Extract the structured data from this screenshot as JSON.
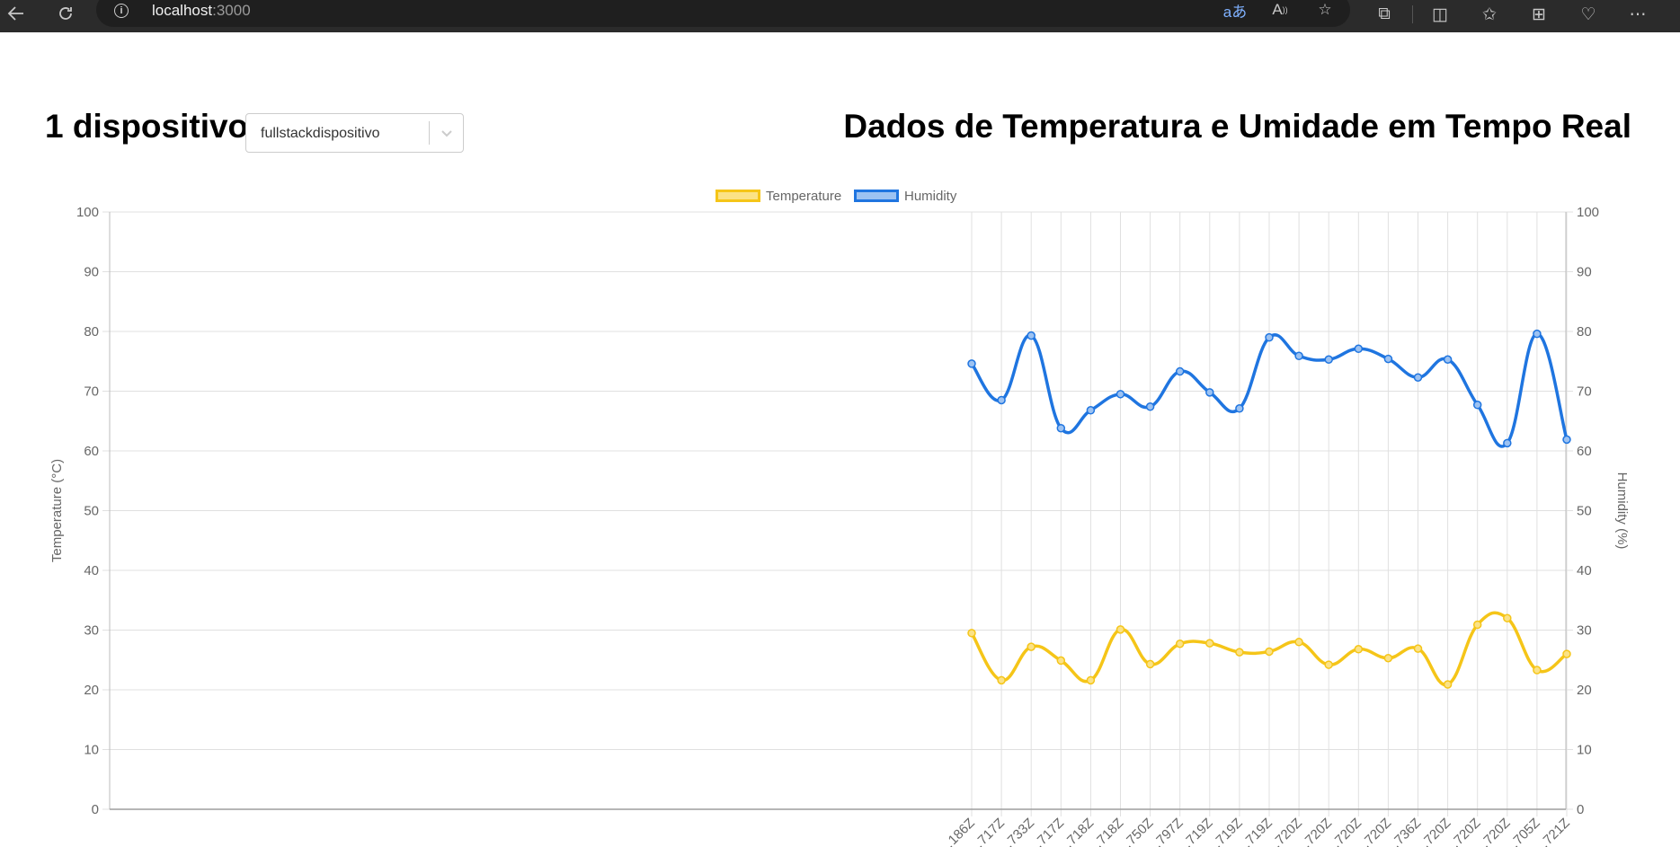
{
  "browser": {
    "url_host": "localhost",
    "url_port": ":3000",
    "back_icon": "back-arrow-icon",
    "refresh_icon": "refresh-icon",
    "toolbar_icons": [
      "translate-icon",
      "read-aloud-icon",
      "favorite-star-icon",
      "extensions-icon",
      "split-screen-icon",
      "favorites-icon",
      "collections-icon",
      "browser-essentials-icon",
      "more-icon"
    ]
  },
  "header": {
    "device_count": "1 dispositivo",
    "selected_device": "fullstackdispositivo",
    "title": "Dados de Temperatura e Umidade em Tempo Real"
  },
  "colors": {
    "temperature": "#f5c518",
    "temperature_fill": "#fbe286",
    "humidity": "#1f75e0",
    "humidity_fill": "#9cc2f2",
    "grid": "#e0e0e0"
  },
  "chart_data": {
    "type": "line",
    "legend_position": "top",
    "grid": true,
    "x_labels": [
      "…186Z",
      "…717Z",
      "…733Z",
      "…717Z",
      "…718Z",
      "…718Z",
      "…750Z",
      "…797Z",
      "…719Z",
      "…719Z",
      "…719Z",
      "…720Z",
      "…720Z",
      "…720Z",
      "…720Z",
      "…736Z",
      "…720Z",
      "…720Z",
      "…720Z",
      "…705Z",
      "…721Z"
    ],
    "y_left": {
      "label": "Temperature (°C)",
      "min": 0,
      "max": 100,
      "ticks": [
        0,
        10,
        20,
        30,
        40,
        50,
        60,
        70,
        80,
        90,
        100
      ]
    },
    "y_right": {
      "label": "Humidity (%)",
      "min": 0,
      "max": 100,
      "ticks": [
        0,
        10,
        20,
        30,
        40,
        50,
        60,
        70,
        80,
        90,
        100
      ]
    },
    "series": [
      {
        "name": "Temperature",
        "axis": "left",
        "values": [
          29.5,
          21.6,
          27.2,
          24.9,
          21.6,
          30.1,
          24.3,
          27.7,
          27.8,
          26.3,
          26.4,
          28.0,
          24.2,
          26.8,
          25.3,
          26.9,
          20.9,
          30.9,
          32.0,
          23.3,
          26.0
        ]
      },
      {
        "name": "Humidity",
        "axis": "right",
        "values": [
          74.6,
          68.5,
          79.3,
          63.8,
          66.8,
          69.5,
          67.4,
          73.3,
          69.8,
          67.1,
          79.0,
          75.9,
          75.3,
          77.1,
          75.4,
          72.3,
          75.3,
          67.7,
          61.3,
          79.6,
          61.9
        ]
      }
    ]
  }
}
